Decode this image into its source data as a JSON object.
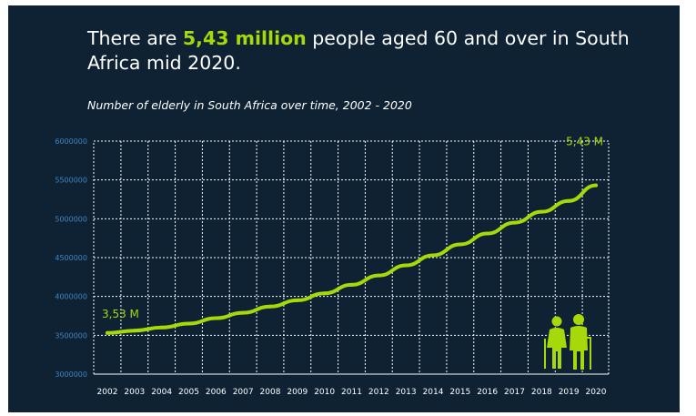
{
  "headline": {
    "prefix": "There are ",
    "highlight": "5,43 million",
    "suffix": " people aged 60 and over in South Africa mid 2020."
  },
  "colors": {
    "background": "#0e2233",
    "accent": "#a6d80a",
    "text": "#ffffff",
    "ytick": "#3f86c2",
    "grid": "#ffffff"
  },
  "icons": [
    "elderly-couple-icon"
  ],
  "chart_data": {
    "type": "line",
    "title": "Number of elderly in South Africa over time, 2002 - 2020",
    "xlabel": "",
    "ylabel": "",
    "x": [
      2002,
      2003,
      2004,
      2005,
      2006,
      2007,
      2008,
      2009,
      2010,
      2011,
      2012,
      2013,
      2014,
      2015,
      2016,
      2017,
      2018,
      2019,
      2020
    ],
    "series": [
      {
        "values": [
          3530000,
          3560000,
          3600000,
          3650000,
          3720000,
          3790000,
          3870000,
          3950000,
          4040000,
          4150000,
          4270000,
          4400000,
          4530000,
          4670000,
          4810000,
          4950000,
          5090000,
          5230000,
          5430000
        ]
      }
    ],
    "ylim": [
      3000000,
      6000000
    ],
    "yticks": [
      "3000000",
      "3500000",
      "4000000",
      "4500000",
      "5000000",
      "5500000",
      "6000000"
    ],
    "xticks": [
      "2002",
      "2003",
      "2004",
      "2005",
      "2006",
      "2007",
      "2008",
      "2009",
      "2010",
      "2011",
      "2012",
      "2013",
      "2014",
      "2015",
      "2016",
      "2017",
      "2018",
      "2019",
      "2020"
    ],
    "annotations": [
      {
        "x": 2002,
        "y": 3530000,
        "text": "3,53 M"
      },
      {
        "x": 2020,
        "y": 5430000,
        "text": "5,43 M"
      }
    ],
    "grid": true
  }
}
